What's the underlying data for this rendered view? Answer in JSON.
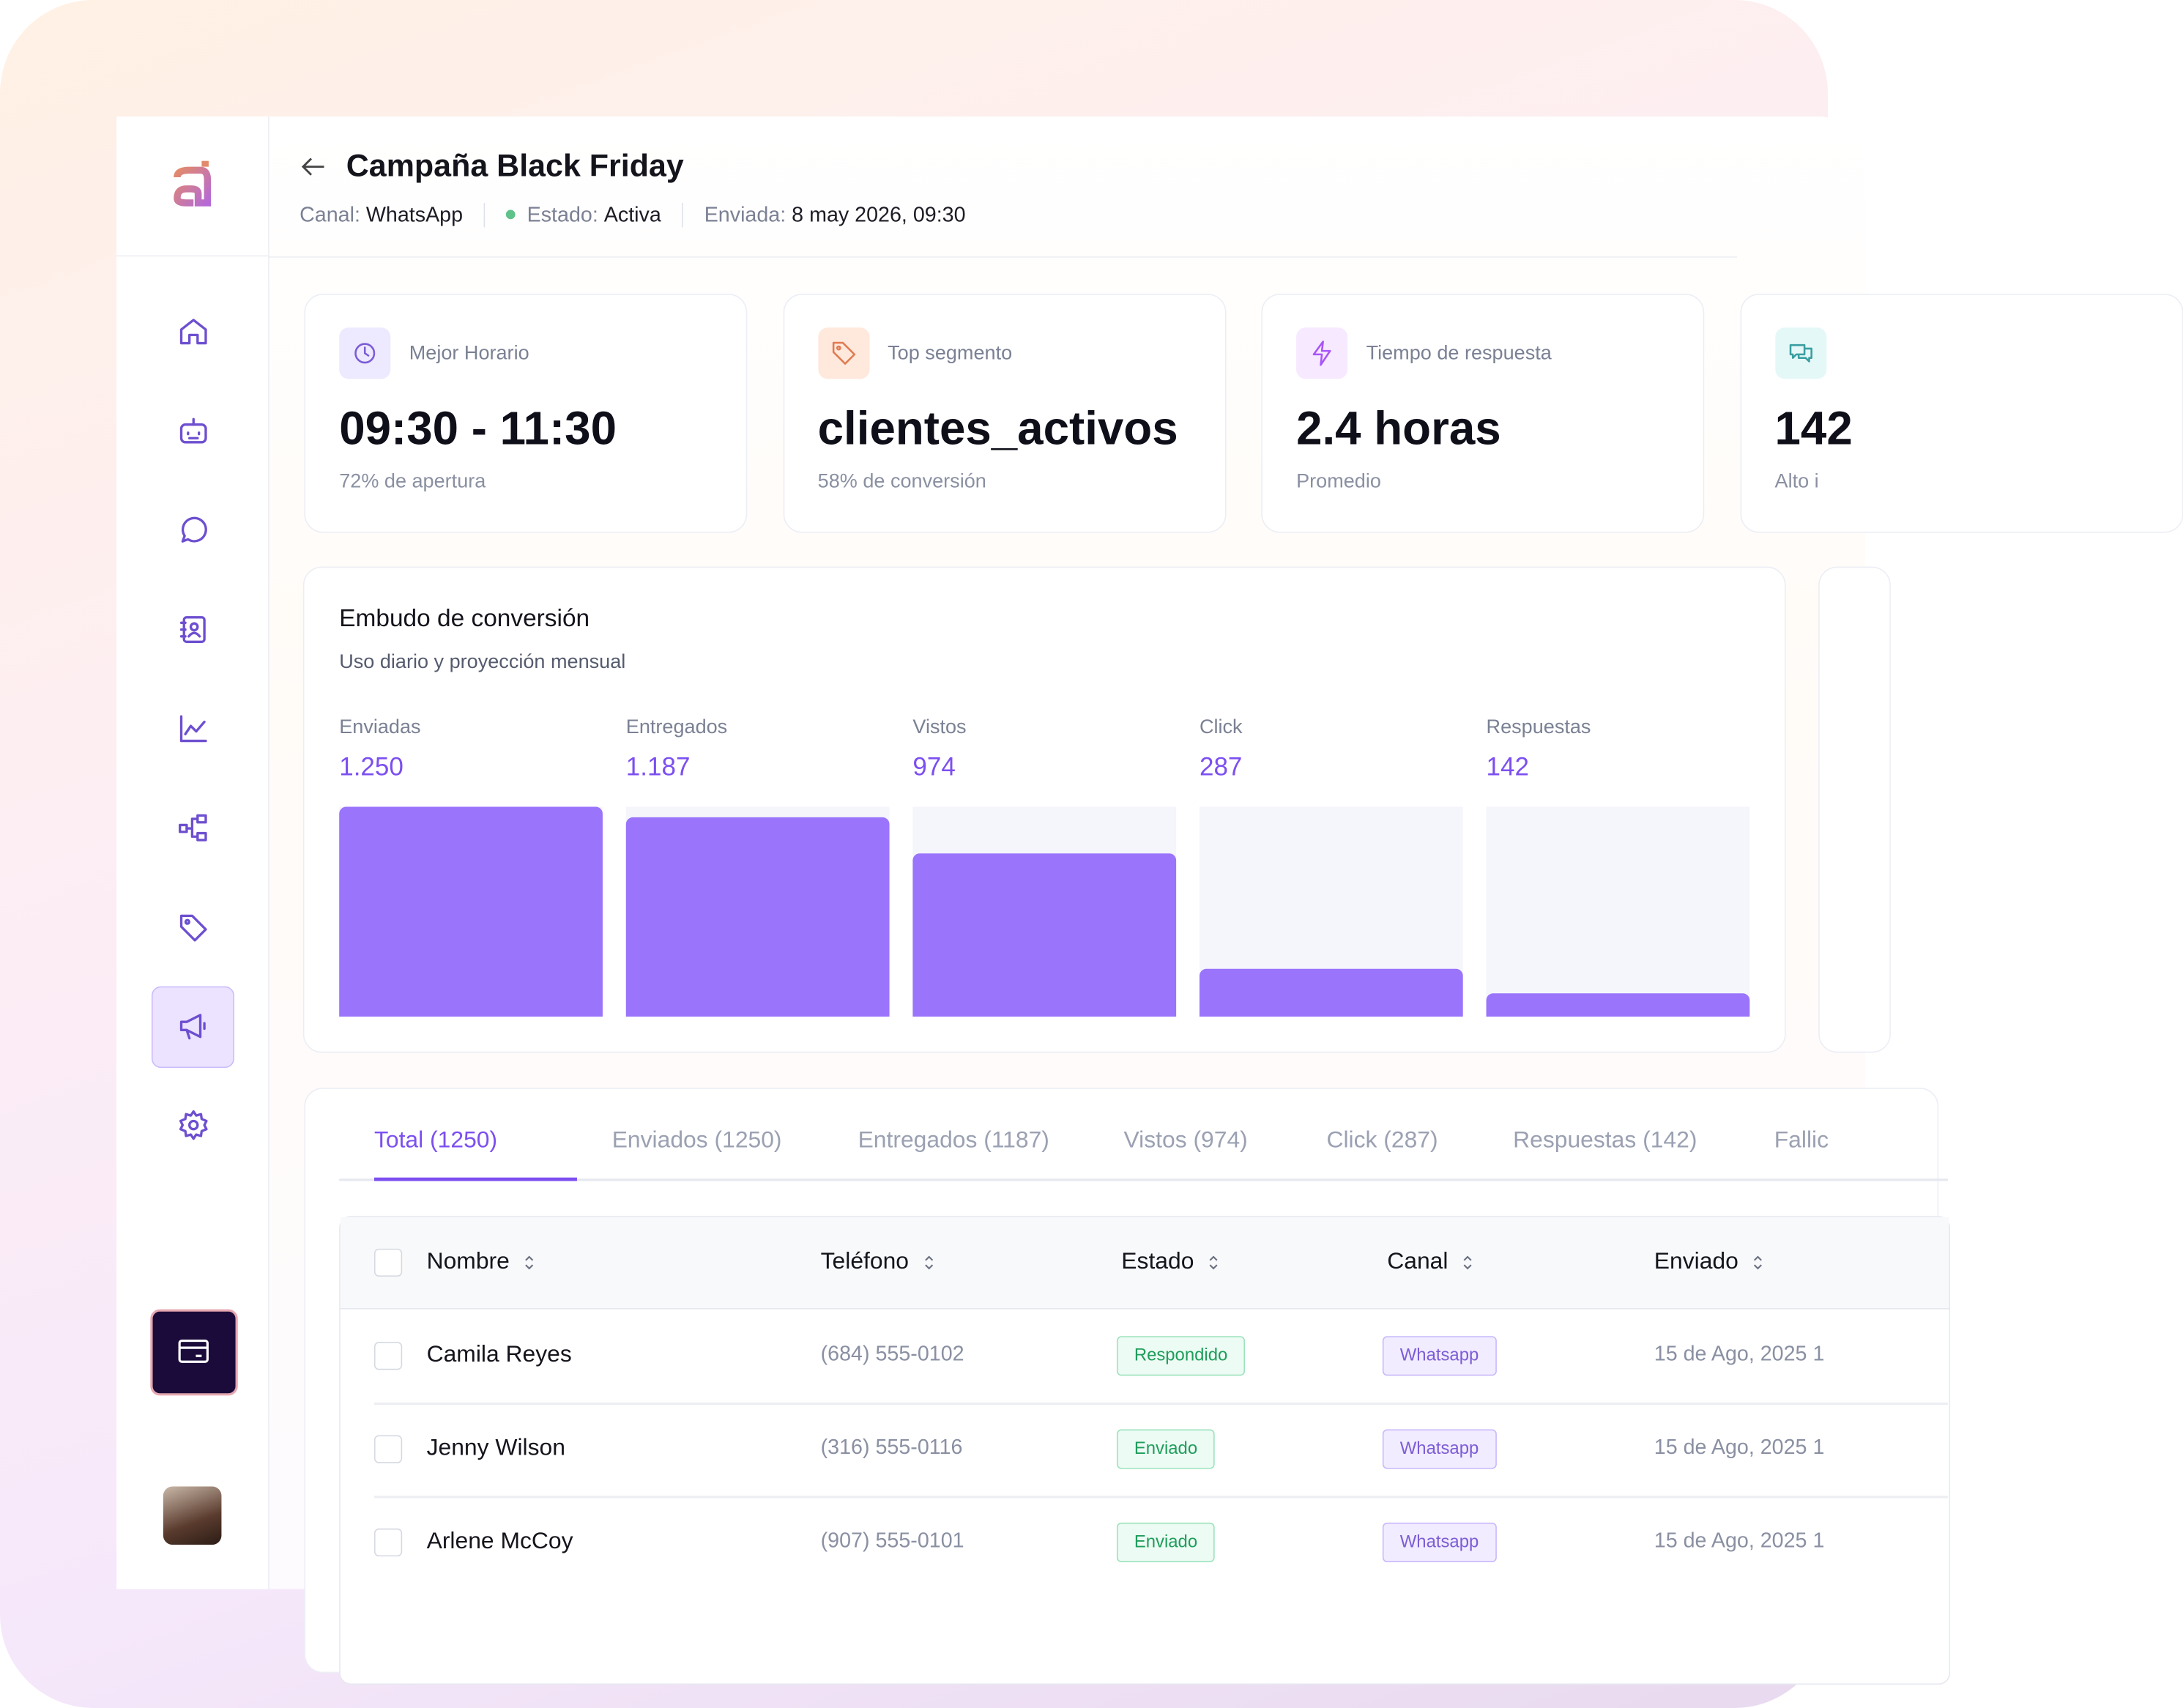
{
  "header": {
    "title": "Campaña Black Friday",
    "meta": [
      {
        "label": "Canal:",
        "value": "WhatsApp"
      },
      {
        "label": "Estado:",
        "value": "Activa"
      },
      {
        "label": "Enviada:",
        "value": "8 may 2026, 09:30"
      }
    ]
  },
  "stats": [
    {
      "label": "Mejor Horario",
      "value": "09:30 - 11:30",
      "note": "72% de apertura"
    },
    {
      "label": "Top segmento",
      "value": "clientes_activos",
      "note": "58% de conversión"
    },
    {
      "label": "Tiempo de respuesta",
      "value": "2.4 horas",
      "note": "Promedio"
    },
    {
      "value": "142",
      "note": "Alto i"
    }
  ],
  "funnel": {
    "title": "Embudo de conversión",
    "subtitle": "Uso diario y proyección mensual",
    "stages": [
      {
        "name": "Enviadas",
        "value": 1250,
        "label": "1.250"
      },
      {
        "name": "Entregados",
        "value": 1187,
        "label": "1.187"
      },
      {
        "name": "Vistos",
        "value": 974,
        "label": "974"
      },
      {
        "name": "Click",
        "value": 287,
        "label": "287"
      },
      {
        "name": "Respuestas",
        "value": 142,
        "label": "142"
      }
    ]
  },
  "tabs": [
    "Total (1250)",
    "Enviados (1250)",
    "Entregados (1187)",
    "Vistos (974)",
    "Click (287)",
    "Respuestas (142)",
    "Fallic"
  ],
  "table": {
    "columns": [
      "Nombre",
      "Teléfono",
      "Estado",
      "Canal",
      "Enviado"
    ],
    "rows": [
      [
        "Camila Reyes",
        "(684) 555-0102",
        "Respondido",
        "Whatsapp",
        "15 de Ago, 2025 1"
      ],
      [
        "Jenny Wilson",
        "(316) 555-0116",
        "Enviado",
        "Whatsapp",
        "15 de Ago, 2025 1"
      ],
      [
        "Arlene McCoy",
        "(907) 555-0101",
        "Enviado",
        "Whatsapp",
        "15 de Ago, 2025 1"
      ]
    ]
  }
}
